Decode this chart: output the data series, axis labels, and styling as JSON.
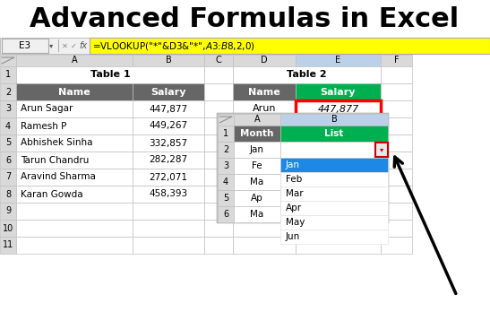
{
  "title": "Advanced Formulas in Excel",
  "title_fontsize": 22,
  "bg_color": "#ffffff",
  "formula_bar_cell": "E3",
  "formula_bar_text": "=VLOOKUP(\"*\"&D3&\"*\",$A$3:$B$8,2,0)",
  "formula_bar_bg": "#ffff00",
  "col_header_bg": "#d9d9d9",
  "row_header_bg": "#d9d9d9",
  "col_header_selected_bg": "#bdd0e9",
  "table1_title": "Table 1",
  "table1_headers": [
    "Name",
    "Salary"
  ],
  "table1_header_bg": "#666666",
  "table1_header_fg": "#ffffff",
  "table1_data": [
    [
      "Arun Sagar",
      "447,877"
    ],
    [
      "Ramesh P",
      "449,267"
    ],
    [
      "Abhishek Sinha",
      "332,857"
    ],
    [
      "Tarun Chandru",
      "282,287"
    ],
    [
      "Aravind Sharma",
      "272,071"
    ],
    [
      "Karan Gowda",
      "458,393"
    ]
  ],
  "table2_title": "Table 2",
  "table2_header_name_bg": "#666666",
  "table2_header_name_fg": "#ffffff",
  "table2_header_salary_bg": "#00b050",
  "table2_header_salary_fg": "#ffffff",
  "table2_name": "Arun",
  "table2_salary": "447,877",
  "table2_salary_border": "#ff0000",
  "table3_header_month_bg": "#666666",
  "table3_header_month_fg": "#ffffff",
  "table3_header_list_bg": "#00b050",
  "table3_header_list_fg": "#ffffff",
  "table3_months": [
    "Fe",
    "Ma",
    "Ap",
    "Ma"
  ],
  "dropdown_bg": "#ffffff",
  "dropdown_selected_bg": "#1e88e5",
  "dropdown_selected_fg": "#ffffff",
  "dropdown_items": [
    "Jan",
    "Feb",
    "Mar",
    "Apr",
    "May",
    "Jun"
  ],
  "dropdown_selected_index": 0,
  "arrow_color": "#000000",
  "grid_color": "#c0c0c0",
  "cell_border": "#c0c0c0"
}
